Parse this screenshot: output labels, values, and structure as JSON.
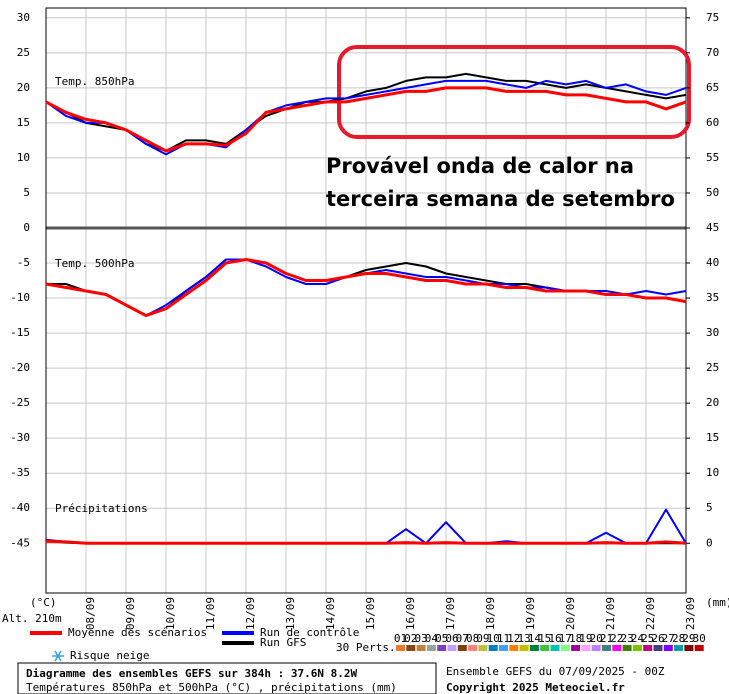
{
  "chart_data": {
    "type": "line",
    "yaxis_label": "(°C)",
    "altitude": "Alt. 210m",
    "y2axis_label": "(mm)",
    "xlim": [
      0,
      384
    ],
    "ylim": [
      -52.1,
      31.4
    ],
    "y2lim": [
      -7.1,
      76.4
    ],
    "grid": true,
    "xticks": [
      {
        "value": 24,
        "label": "08/09"
      },
      {
        "value": 48,
        "label": "09/09"
      },
      {
        "value": 72,
        "label": "10/09"
      },
      {
        "value": 96,
        "label": "11/09"
      },
      {
        "value": 120,
        "label": "12/09"
      },
      {
        "value": 144,
        "label": "13/09"
      },
      {
        "value": 168,
        "label": "14/09"
      },
      {
        "value": 192,
        "label": "15/09"
      },
      {
        "value": 216,
        "label": "16/09"
      },
      {
        "value": 240,
        "label": "17/09"
      },
      {
        "value": 264,
        "label": "18/09"
      },
      {
        "value": 288,
        "label": "19/09"
      },
      {
        "value": 312,
        "label": "20/09"
      },
      {
        "value": 336,
        "label": "21/09"
      },
      {
        "value": 360,
        "label": "22/09"
      },
      {
        "value": 384,
        "label": "23/09"
      }
    ],
    "yticks": [
      30,
      25,
      20,
      15,
      10,
      5,
      0,
      -5,
      -10,
      -15,
      -20,
      -25,
      -30,
      -35,
      -40,
      -45
    ],
    "y2ticks": [
      75,
      70,
      65,
      60,
      55,
      50,
      45,
      40,
      35,
      30,
      25,
      20,
      15,
      10,
      5,
      0
    ],
    "x": [
      0,
      12,
      24,
      36,
      48,
      60,
      72,
      84,
      96,
      108,
      120,
      132,
      144,
      156,
      168,
      180,
      192,
      204,
      216,
      228,
      240,
      252,
      264,
      276,
      288,
      300,
      312,
      324,
      336,
      348,
      360,
      372,
      384
    ],
    "legend": [
      {
        "name": "Moyenne des scénarios",
        "color": "#ff0000",
        "width": 3
      },
      {
        "name": "Run de contrôle",
        "color": "#0000ff",
        "width": 2
      },
      {
        "name": "Run GFS",
        "color": "#000000",
        "width": 2
      }
    ],
    "panels": [
      {
        "label": "Temp. 850hPa",
        "axis": "y",
        "series": [
          {
            "values": [
              18,
              16.5,
              15.5,
              15,
              14,
              12.5,
              11,
              12,
              12,
              11.8,
              13.5,
              16.5,
              17,
              17.5,
              18,
              18,
              18.5,
              19,
              19.5,
              19.5,
              20,
              20,
              20,
              19.5,
              19.5,
              19.5,
              19,
              19,
              18.5,
              18,
              18,
              17,
              18
            ]
          },
          {
            "values": [
              18,
              16,
              15,
              15,
              14,
              12,
              10.5,
              12,
              12,
              11.5,
              14,
              16.5,
              17.5,
              18,
              18.5,
              18.5,
              19,
              19.5,
              20,
              20.5,
              21,
              21,
              21,
              20.5,
              20,
              21,
              20.5,
              21,
              20,
              20.5,
              19.5,
              19,
              20
            ]
          },
          {
            "values": [
              18,
              16.5,
              15,
              14.5,
              14,
              12,
              11,
              12.5,
              12.5,
              12,
              14,
              16,
              17,
              18,
              18,
              18.5,
              19.5,
              20,
              21,
              21.5,
              21.5,
              22,
              21.5,
              21,
              21,
              20.5,
              20,
              20.5,
              20,
              19.5,
              19,
              18.5,
              19
            ]
          }
        ]
      },
      {
        "label": "Temp. 500hPa",
        "axis": "y",
        "series": [
          {
            "values": [
              -8,
              -8.5,
              -9,
              -9.5,
              -11,
              -12.5,
              -11.5,
              -9.5,
              -7.5,
              -5,
              -4.5,
              -5,
              -6.5,
              -7.5,
              -7.5,
              -7,
              -6.5,
              -6.5,
              -7,
              -7.5,
              -7.5,
              -8,
              -8,
              -8.5,
              -8.5,
              -9,
              -9,
              -9,
              -9.5,
              -9.5,
              -10,
              -10,
              -10.5
            ]
          },
          {
            "values": [
              -8,
              -8.5,
              -9,
              -9.5,
              -11,
              -12.5,
              -11,
              -9,
              -7,
              -4.5,
              -4.5,
              -5.5,
              -7,
              -8,
              -8,
              -7,
              -6.5,
              -6,
              -6.5,
              -7,
              -7,
              -7.5,
              -8,
              -8,
              -8.5,
              -8.5,
              -9,
              -9,
              -9,
              -9.5,
              -9,
              -9.5,
              -9
            ]
          },
          {
            "values": [
              -8,
              -8,
              -9,
              -9.5,
              -11,
              -12.5,
              -11.5,
              -9,
              -7,
              -4.5,
              -4.5,
              -5,
              -6.5,
              -7.5,
              -7.5,
              -7,
              -6,
              -5.5,
              -5,
              -5.5,
              -6.5,
              -7,
              -7.5,
              -8,
              -8,
              -8.5,
              -9,
              -9,
              -9.5,
              -9.5,
              -10,
              -10,
              -10.5
            ]
          }
        ]
      },
      {
        "label": "Précipitations",
        "axis": "y2",
        "series": [
          {
            "values": [
              0.3,
              0.2,
              0,
              0,
              0,
              0,
              0,
              0,
              0,
              0,
              0,
              0,
              0,
              0,
              0,
              0,
              0,
              0,
              0.1,
              0,
              0.1,
              0,
              0,
              0,
              0,
              0,
              0,
              0,
              0.1,
              0,
              0,
              0.2,
              0
            ]
          },
          {
            "values": [
              0.5,
              0.2,
              0,
              0,
              0,
              0,
              0,
              0,
              0,
              0,
              0,
              0,
              0,
              0,
              0,
              0,
              0,
              0,
              2,
              0,
              3,
              0,
              0,
              0.3,
              0,
              0,
              0,
              0,
              1.5,
              0,
              0,
              4.8,
              0
            ]
          },
          {
            "values": [
              0.4,
              0.1,
              0,
              0,
              0,
              0,
              0,
              0,
              0,
              0,
              0,
              0,
              0,
              0,
              0,
              0,
              0,
              0,
              0,
              0,
              0,
              0,
              0,
              0,
              0,
              0,
              0,
              0,
              0,
              0,
              0,
              0,
              0
            ]
          }
        ]
      }
    ],
    "perts": {
      "label": "30 Perts.",
      "members": [
        {
          "name": "01",
          "color": "#e87a2a"
        },
        {
          "name": "02",
          "color": "#8b4513"
        },
        {
          "name": "03",
          "color": "#c08040"
        },
        {
          "name": "04",
          "color": "#a0a0a0"
        },
        {
          "name": "05",
          "color": "#8040c0"
        },
        {
          "name": "06",
          "color": "#c0a0ff"
        },
        {
          "name": "07",
          "color": "#804000"
        },
        {
          "name": "08",
          "color": "#ff8080"
        },
        {
          "name": "09",
          "color": "#c0c040"
        },
        {
          "name": "10",
          "color": "#0080c0"
        },
        {
          "name": "11",
          "color": "#40a0ff"
        },
        {
          "name": "12",
          "color": "#ff8000"
        },
        {
          "name": "13",
          "color": "#c0c000"
        },
        {
          "name": "14",
          "color": "#008040"
        },
        {
          "name": "15",
          "color": "#40c040"
        },
        {
          "name": "16",
          "color": "#00c0c0"
        },
        {
          "name": "17",
          "color": "#80ff80"
        },
        {
          "name": "18",
          "color": "#a000a0"
        },
        {
          "name": "19",
          "color": "#ffa0ff"
        },
        {
          "name": "20",
          "color": "#c080ff"
        },
        {
          "name": "21",
          "color": "#408080"
        },
        {
          "name": "22",
          "color": "#ff00ff"
        },
        {
          "name": "23",
          "color": "#408000"
        },
        {
          "name": "24",
          "color": "#80c000"
        },
        {
          "name": "25",
          "color": "#c00080"
        },
        {
          "name": "26",
          "color": "#404080"
        },
        {
          "name": "27",
          "color": "#8000ff"
        },
        {
          "name": "28",
          "color": "#00a0a0"
        },
        {
          "name": "29",
          "color": "#800000"
        },
        {
          "name": "30",
          "color": "#c00000"
        }
      ]
    },
    "snow": "Risque neige",
    "annotation": [
      "Provável onda de calor na",
      "terceira semana de setembro"
    ],
    "footer": {
      "title": "Diagramme des ensembles GEFS sur 384h : 37.6N 8.2W",
      "subtitle": "Températures 850hPa et 500hPa (°C) , précipitations (mm)",
      "run": "Ensemble GEFS du 07/09/2025 - 00Z",
      "copyright": "Copyright 2025 Meteociel.fr"
    }
  }
}
